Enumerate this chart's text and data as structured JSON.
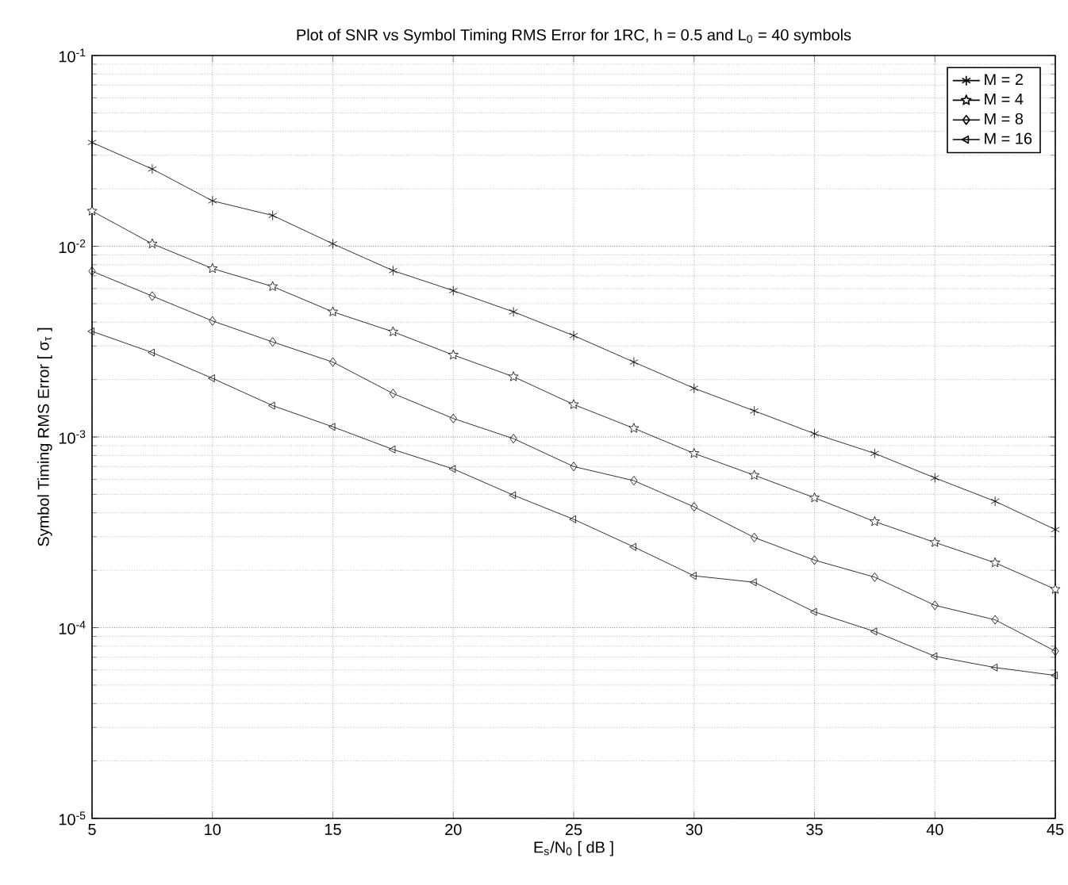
{
  "chart_data": {
    "type": "line",
    "title": "Plot of SNR vs Symbol Timing RMS Error for 1RC, h = 0.5 and  L$_{0}$ = 40 symbols",
    "xlabel": "E$_{s}$/N$_{0}$ [ dB ]",
    "ylabel": "Symbol Timing RMS Error [ σ$_{τ}$ ]",
    "x": [
      5,
      7.5,
      10,
      12.5,
      15,
      17.5,
      20,
      22.5,
      25,
      27.5,
      30,
      32.5,
      35,
      37.5,
      40,
      42.5,
      45
    ],
    "series": [
      {
        "name": "M = 2",
        "color": "#000000",
        "marker": "cross",
        "values": [
          0.035,
          0.0254,
          0.0173,
          0.0145,
          0.0103,
          0.00745,
          0.00585,
          0.00453,
          0.0034,
          0.00247,
          0.0018,
          0.00137,
          0.00104,
          0.00082,
          0.00061,
          0.00046,
          0.000327
        ]
      },
      {
        "name": "M = 4",
        "color": "#000000",
        "marker": "star",
        "values": [
          0.0153,
          0.0103,
          0.00764,
          0.00615,
          0.00453,
          0.00356,
          0.00269,
          0.00207,
          0.00148,
          0.00111,
          0.00082,
          0.00063,
          0.00048,
          0.00036,
          0.00028,
          0.000219,
          0.000159
        ]
      },
      {
        "name": "M = 8",
        "color": "#000000",
        "marker": "diamond",
        "values": [
          0.0074,
          0.00548,
          0.00406,
          0.00315,
          0.00247,
          0.00169,
          0.00125,
          0.00098,
          0.0007,
          0.00059,
          0.00043,
          0.000297,
          0.000226,
          0.000184,
          0.000131,
          0.00011,
          7.53e-05
        ]
      },
      {
        "name": "M = 16",
        "color": "#000000",
        "marker": "triangle",
        "values": [
          0.00358,
          0.00277,
          0.00203,
          0.00146,
          0.00113,
          0.00086,
          0.00068,
          0.000495,
          0.00037,
          0.000265,
          0.000187,
          0.000173,
          0.000121,
          9.55e-05,
          7.08e-05,
          6.18e-05,
          5.62e-05
        ]
      }
    ],
    "xlim": [
      5,
      45
    ],
    "xticks": [
      5,
      10,
      15,
      20,
      25,
      30,
      35,
      40,
      45
    ],
    "ylim": [
      1e-05,
      0.1
    ],
    "yticks": [
      {
        "value": 1e-05,
        "label": "10$^{-5}$"
      },
      {
        "value": 0.0001,
        "label": "10$^{-4}$"
      },
      {
        "value": 0.001,
        "label": "10$^{-3}$"
      },
      {
        "value": 0.01,
        "label": "10$^{-2}$"
      },
      {
        "value": 0.1,
        "label": "10$^{-1}$"
      }
    ],
    "log": "y",
    "grid": true,
    "legend": "top right",
    "line_style": "solid"
  }
}
